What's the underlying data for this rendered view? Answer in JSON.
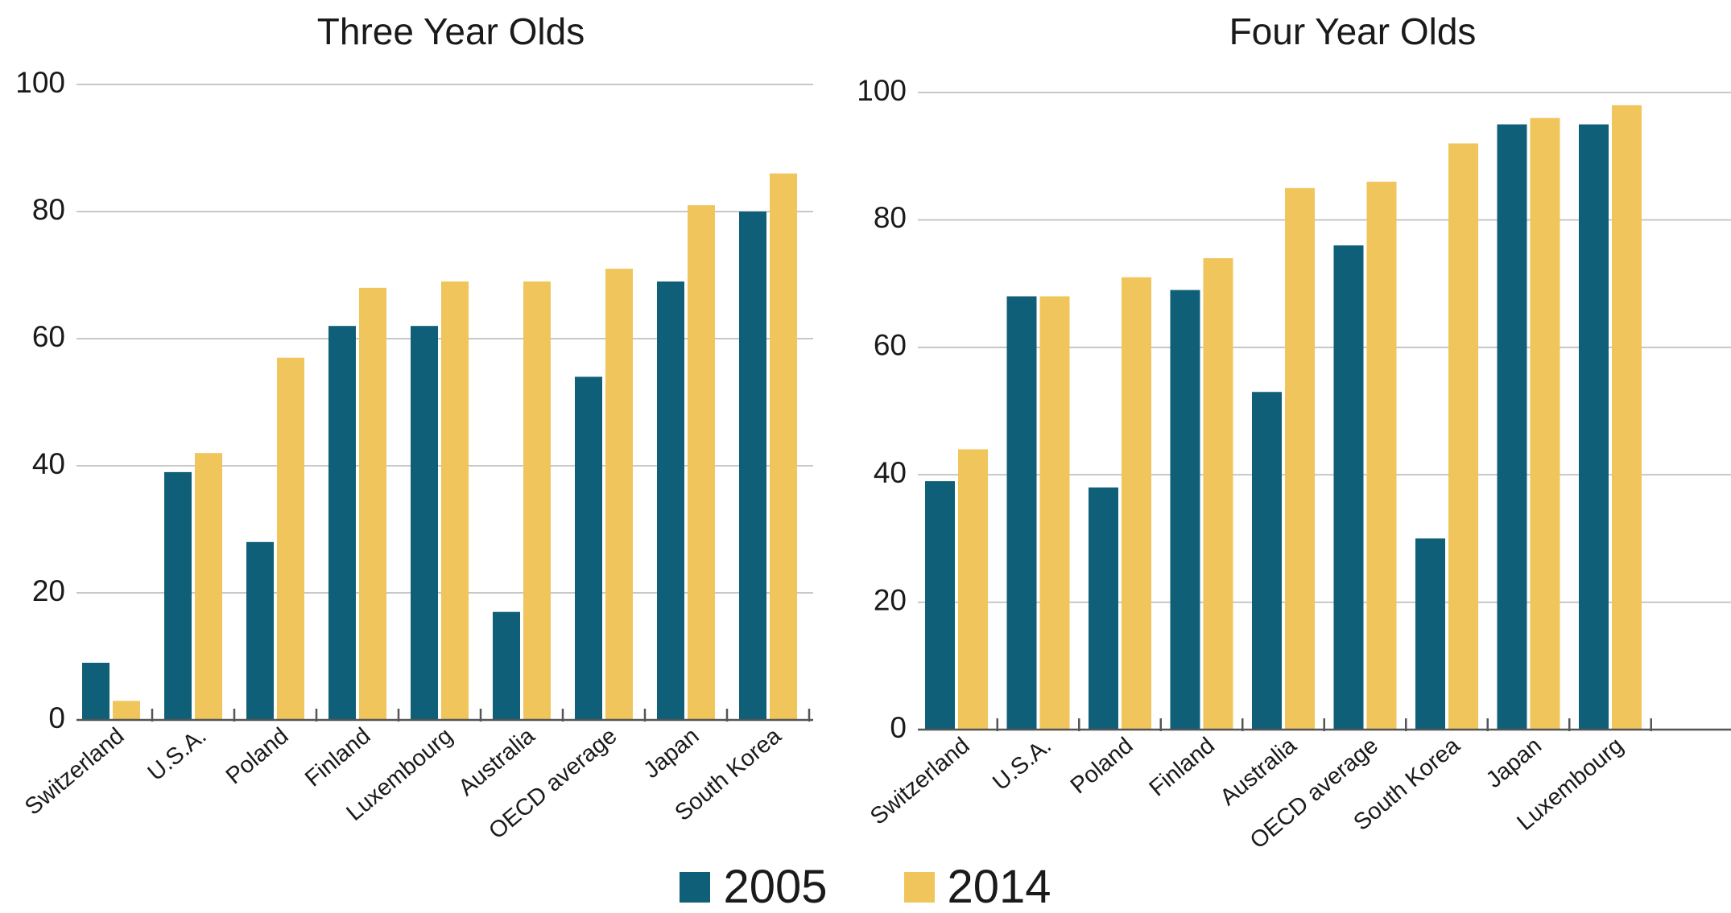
{
  "colors": {
    "series_2005": "#0f5f78",
    "series_2014": "#efc55c"
  },
  "legend": {
    "items": [
      {
        "label": "2005"
      },
      {
        "label": "2014"
      }
    ]
  },
  "chart_data": [
    {
      "type": "bar",
      "title": "Three Year Olds",
      "categories": [
        "Switzerland",
        "U.S.A.",
        "Poland",
        "Finland",
        "Luxembourg",
        "Australia",
        "OECD average",
        "Japan",
        "South Korea"
      ],
      "series": [
        {
          "name": "2005",
          "values": [
            9,
            39,
            28,
            62,
            62,
            17,
            54,
            69,
            80
          ]
        },
        {
          "name": "2014",
          "values": [
            3,
            42,
            57,
            68,
            69,
            69,
            71,
            81,
            86
          ]
        }
      ],
      "yticks": [
        "0",
        "20",
        "40",
        "60",
        "80",
        "100"
      ],
      "ylim": [
        0,
        100
      ],
      "grid": true,
      "legend_position": "bottom"
    },
    {
      "type": "bar",
      "title": "Four Year Olds",
      "categories": [
        "Switzerland",
        "U.S.A.",
        "Poland",
        "Finland",
        "Australia",
        "OECD average",
        "South Korea",
        "Japan",
        "Luxembourg"
      ],
      "series": [
        {
          "name": "2005",
          "values": [
            39,
            68,
            38,
            69,
            53,
            76,
            30,
            95,
            95
          ]
        },
        {
          "name": "2014",
          "values": [
            44,
            68,
            71,
            74,
            85,
            86,
            92,
            96,
            98
          ]
        }
      ],
      "yticks": [
        "0",
        "20",
        "40",
        "60",
        "80",
        "100"
      ],
      "ylim": [
        0,
        100
      ],
      "grid": true,
      "legend_position": "bottom"
    }
  ]
}
